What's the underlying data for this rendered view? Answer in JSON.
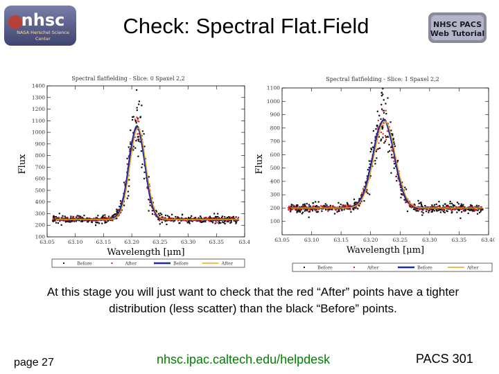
{
  "header": {
    "title": "Check: Spectral Flat.Field",
    "logo_left": {
      "main": "nhsc",
      "sub1": "NASA Herschel Science",
      "sub2": "Center"
    },
    "logo_right": {
      "line1": "NHSC PACS",
      "line2": "Web Tutorial"
    }
  },
  "caption": "At this stage you will just want to check that the red “After” points have a tighter distribution (less scatter) than the black “Before” points.",
  "footer": {
    "page": "page 27",
    "link": "nhsc.ipac.caltech.edu/helpdesk",
    "course": "PACS 301"
  },
  "colors": {
    "before_points": "#111111",
    "after_points": "#dd1a1a",
    "before_line": "#1a2aa8",
    "after_line": "#e8a817",
    "link": "#008000"
  },
  "chart_data": [
    {
      "type": "scatter",
      "title": "Spectral flatfielding - Slice: 0 Spaxel 2,2",
      "xlabel": "Wavelength [μm]",
      "ylabel": "Flux",
      "xlim": [
        63.05,
        63.4
      ],
      "ylim": [
        100,
        1400
      ],
      "xticks": [
        63.05,
        63.1,
        63.15,
        63.2,
        63.25,
        63.3,
        63.35,
        63.4
      ],
      "xtick_labels": [
        "63.05",
        "63.10",
        "63.15",
        "63.20",
        "63.25",
        "63.30",
        "63.35",
        "63.4"
      ],
      "yticks": [
        100,
        200,
        300,
        400,
        500,
        600,
        700,
        800,
        900,
        1000,
        1100,
        1200,
        1300,
        1400
      ],
      "legend": [
        "Before",
        "After",
        "Before",
        "After"
      ],
      "series_model": {
        "baseline": 250,
        "peak_center": 63.209,
        "peak_height": 800,
        "peak_sigma": 0.014
      }
    },
    {
      "type": "scatter",
      "title": "Spectral flatfielding - Slice: 1 Spaxel 2,2",
      "xlabel": "Wavelength [μm]",
      "ylabel": "Flux",
      "xlim": [
        63.05,
        63.4
      ],
      "ylim": [
        0,
        1100
      ],
      "xticks": [
        63.05,
        63.1,
        63.15,
        63.2,
        63.25,
        63.3,
        63.35,
        63.4
      ],
      "xtick_labels": [
        "63.05",
        "63.10",
        "63.15",
        "63.20",
        "63.25",
        "63.30",
        "63.35",
        "63.40"
      ],
      "yticks": [
        100,
        200,
        300,
        400,
        500,
        600,
        700,
        800,
        900,
        1000,
        1100
      ],
      "legend": [
        "Before",
        "After",
        "Before",
        "After"
      ],
      "series_model": {
        "baseline": 200,
        "peak_center": 63.222,
        "peak_height": 660,
        "peak_sigma": 0.018
      }
    }
  ]
}
